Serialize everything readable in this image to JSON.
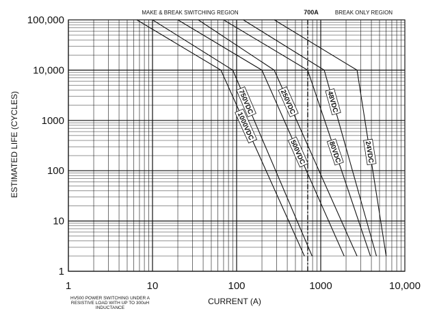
{
  "chart_data": {
    "type": "line",
    "title": "",
    "xlabel": "CURRENT (A)",
    "ylabel": "ESTIMATED LIFE (CYCLES)",
    "x_scale": "log",
    "y_scale": "log",
    "xlim": [
      1,
      10000
    ],
    "ylim": [
      1,
      100000
    ],
    "grid": true,
    "x_tick_labels": [
      "1",
      "10",
      "100",
      "1000",
      "10,000"
    ],
    "y_tick_labels": [
      "1",
      "10",
      "100",
      "1000",
      "10,000",
      "100,000"
    ],
    "x_ticks": [
      1,
      10,
      100,
      1000,
      10000
    ],
    "y_ticks": [
      1,
      10,
      100,
      1000,
      10000,
      100000
    ],
    "annotations": {
      "left_region": "MAKE & BREAK SWITCHING REGION",
      "threshold": "700A",
      "right_region": "BREAK ONLY REGION",
      "threshold_x": 700,
      "footnote_lines": [
        "HV500 POWER SWITCHING UNDER A",
        "RESISTIVE LOAD WITH UP TO 300uH",
        "INDUCTANCE"
      ]
    },
    "series": [
      {
        "name": "1000VDC",
        "x": [
          6.5,
          65,
          640
        ],
        "y": [
          100000,
          10000,
          2
        ]
      },
      {
        "name": "750VDC",
        "x": [
          10,
          90,
          790
        ],
        "y": [
          100000,
          10000,
          2
        ]
      },
      {
        "name": "500VDC",
        "x": [
          20,
          200,
          1900
        ],
        "y": [
          100000,
          10000,
          2
        ]
      },
      {
        "name": "250VDC",
        "x": [
          35,
          280,
          2700
        ],
        "y": [
          100000,
          10000,
          2
        ]
      },
      {
        "name": "80VDC",
        "x": [
          70,
          700,
          3900
        ],
        "y": [
          100000,
          10000,
          2
        ]
      },
      {
        "name": "48VDC",
        "x": [
          120,
          1100,
          4600
        ],
        "y": [
          100000,
          10000,
          2
        ]
      },
      {
        "name": "24VDC",
        "x": [
          280,
          2700,
          6000
        ],
        "y": [
          100000,
          10000,
          2
        ]
      }
    ]
  }
}
